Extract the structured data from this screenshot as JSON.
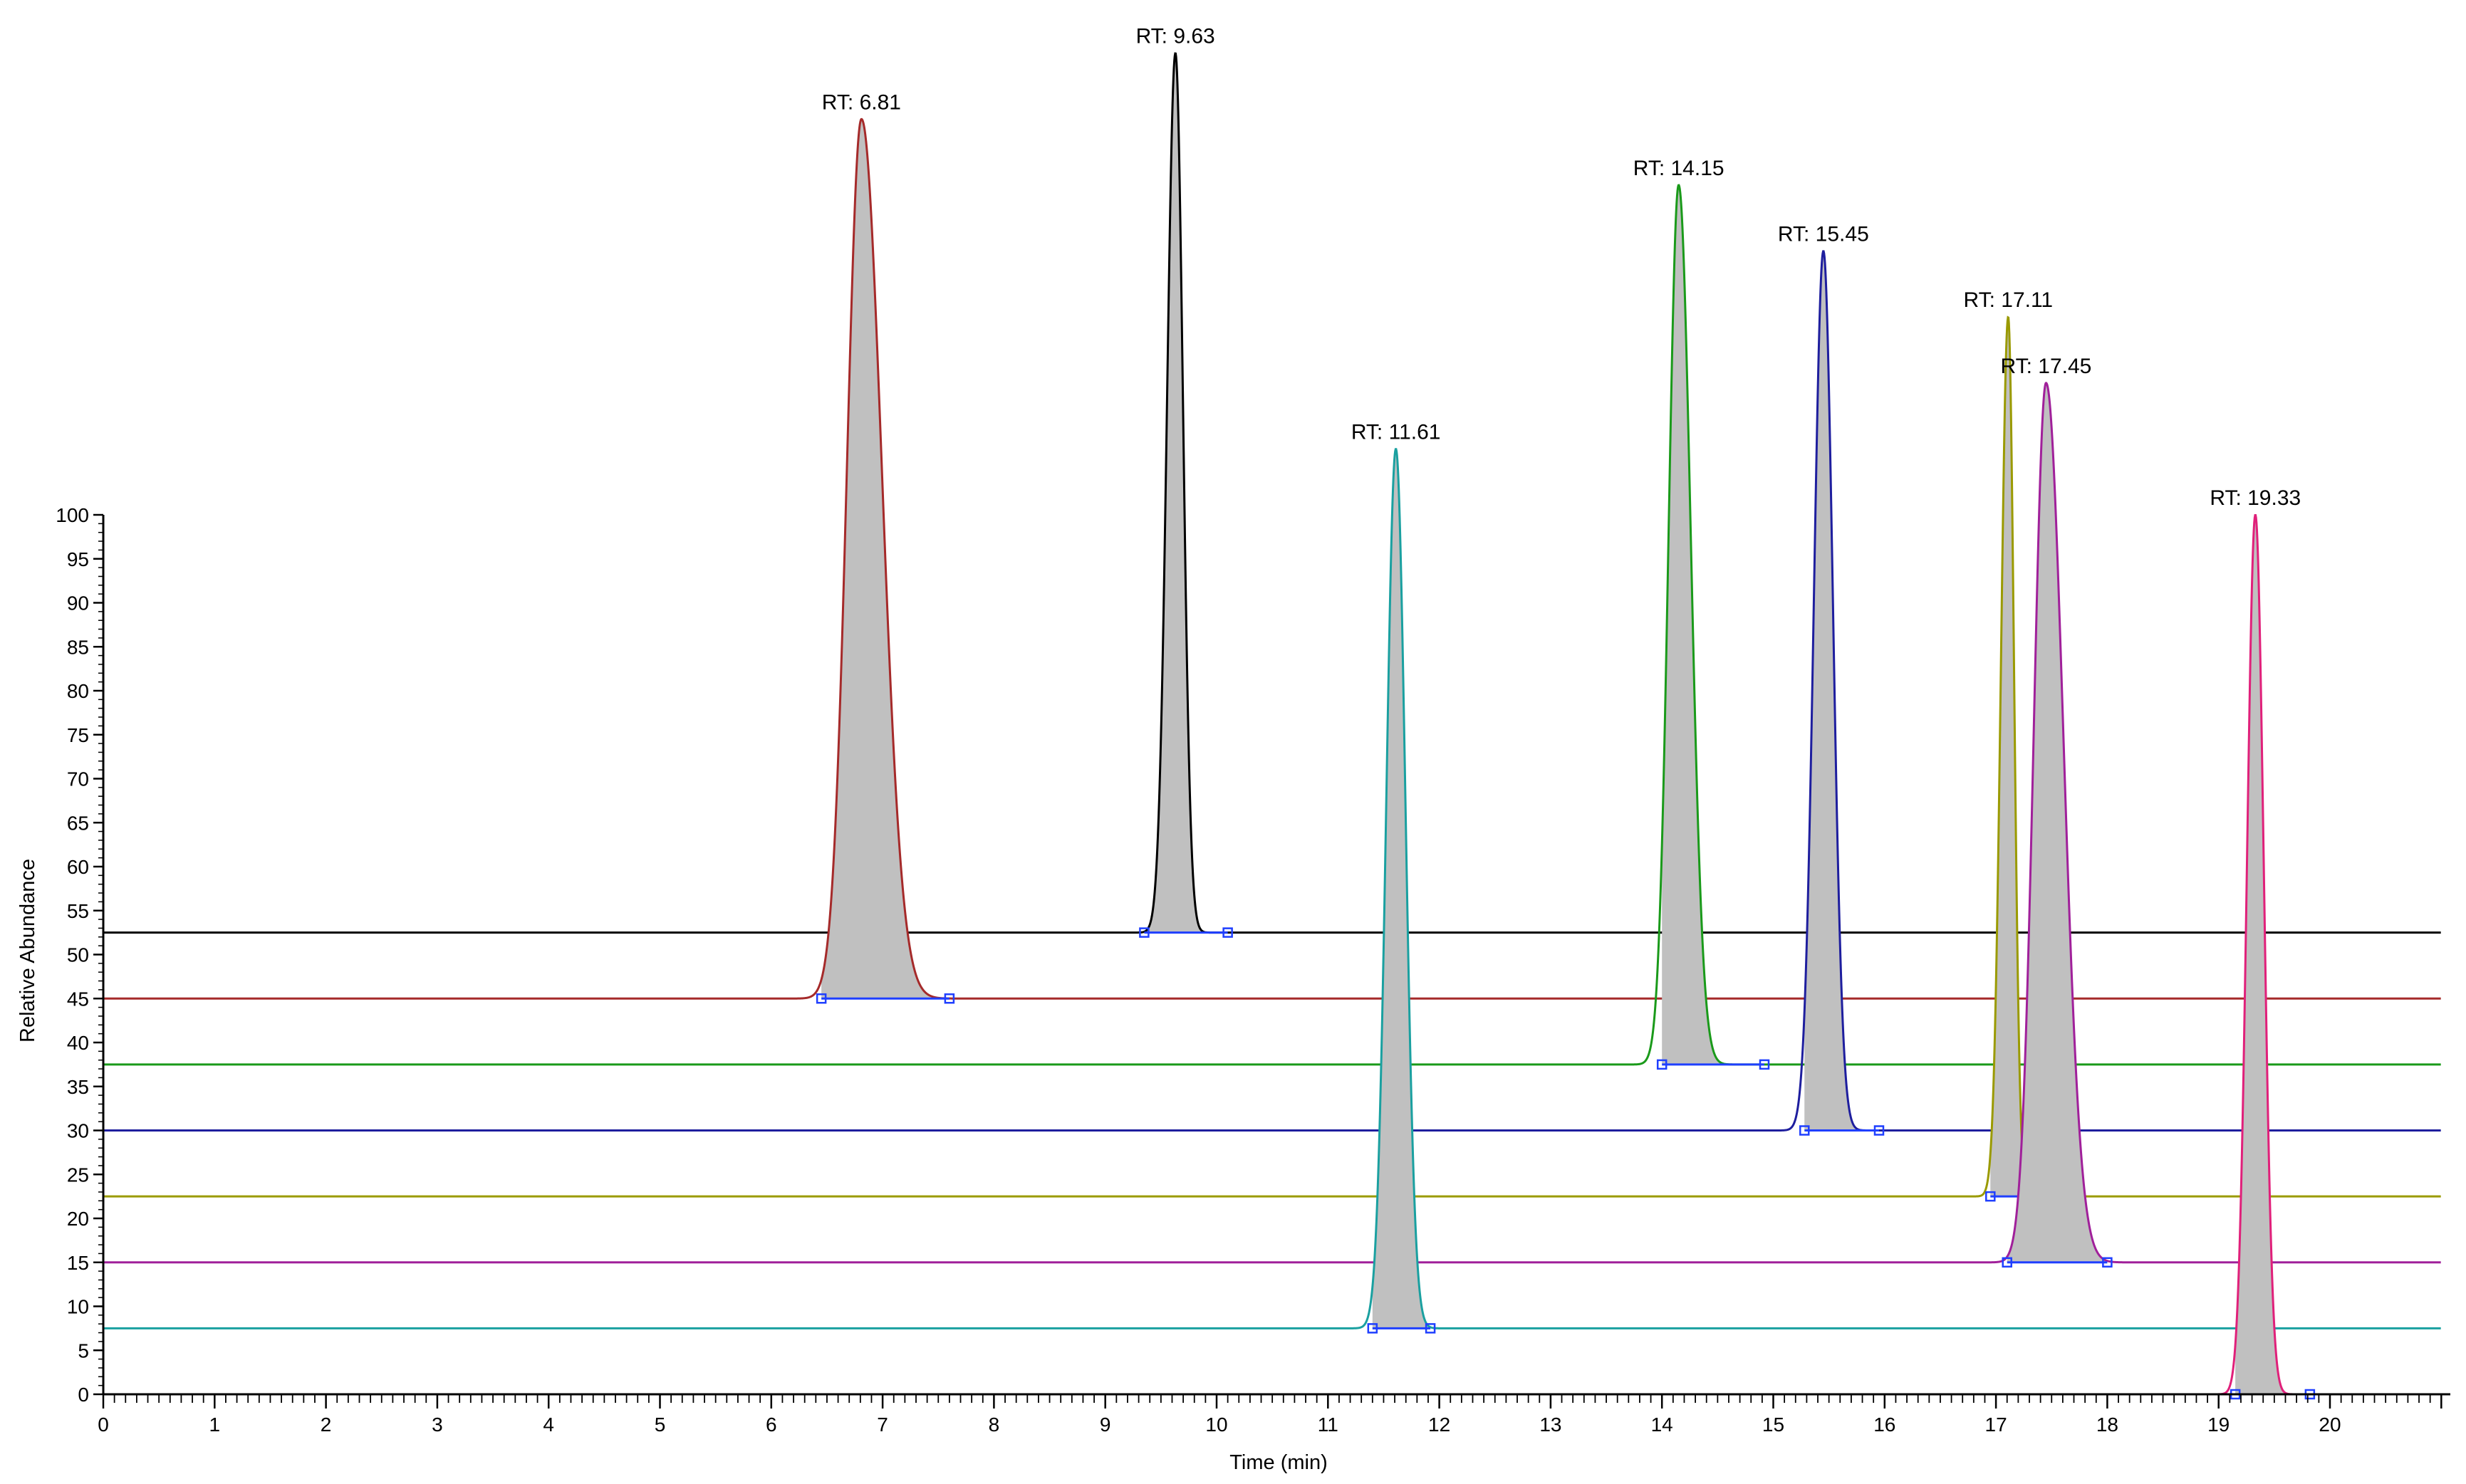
{
  "chart_data": {
    "type": "line",
    "subtype": "stacked-chromatogram",
    "xlabel": "Time (min)",
    "ylabel": "Relative Abundance",
    "xlim": [
      0,
      21
    ],
    "ylim": [
      0,
      100
    ],
    "x_ticks": [
      0,
      1,
      2,
      3,
      4,
      5,
      6,
      7,
      8,
      9,
      10,
      11,
      12,
      13,
      14,
      15,
      16,
      17,
      18,
      19,
      20
    ],
    "y_ticks": [
      0,
      5,
      10,
      15,
      20,
      25,
      30,
      35,
      40,
      45,
      50,
      55,
      60,
      65,
      70,
      75,
      80,
      85,
      90,
      95,
      100
    ],
    "grid": false,
    "peak_fill": "#c0c0c0",
    "series": [
      {
        "label": "RT: 9.63",
        "rt": 9.63,
        "color": "#000000",
        "baseline": 52.5,
        "height": 100,
        "sigma": 0.075,
        "tail": 0.9,
        "start": 9.35,
        "end": 10.1
      },
      {
        "label": "RT: 6.81",
        "rt": 6.81,
        "color": "#a52a2a",
        "baseline": 45.0,
        "height": 100,
        "sigma": 0.13,
        "tail": 1.4,
        "start": 6.45,
        "end": 7.6
      },
      {
        "label": "RT: 14.15",
        "rt": 14.15,
        "color": "#1a9a1a",
        "baseline": 37.5,
        "height": 100,
        "sigma": 0.09,
        "tail": 1.2,
        "start": 14.0,
        "end": 14.92
      },
      {
        "label": "RT: 15.45",
        "rt": 15.45,
        "color": "#1e1e9e",
        "baseline": 30.0,
        "height": 100,
        "sigma": 0.085,
        "tail": 1.0,
        "start": 15.28,
        "end": 15.95
      },
      {
        "label": "RT: 17.11",
        "rt": 17.11,
        "color": "#9a9a00",
        "baseline": 22.5,
        "height": 100,
        "sigma": 0.065,
        "tail": 0.8,
        "start": 16.95,
        "end": 17.3
      },
      {
        "label": "RT: 17.45",
        "rt": 17.45,
        "color": "#a0209a",
        "baseline": 15.0,
        "height": 100,
        "sigma": 0.11,
        "tail": 1.4,
        "start": 17.1,
        "end": 18.0
      },
      {
        "label": "RT: 11.61",
        "rt": 11.61,
        "color": "#1aa0a0",
        "baseline": 7.5,
        "height": 100,
        "sigma": 0.085,
        "tail": 1.0,
        "start": 11.4,
        "end": 11.92
      },
      {
        "label": "RT: 19.33",
        "rt": 19.33,
        "color": "#e0207a",
        "baseline": 0.0,
        "height": 100,
        "sigma": 0.075,
        "tail": 1.0,
        "start": 19.15,
        "end": 19.82
      }
    ]
  }
}
